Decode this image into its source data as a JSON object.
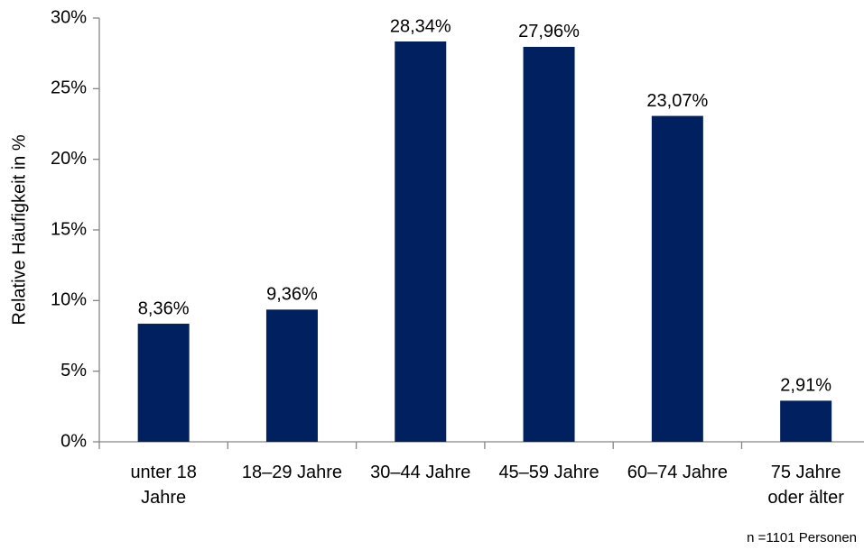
{
  "chart_data": {
    "type": "bar",
    "y_label": "Relative Häufigkeit in %",
    "note": "n =1101 Personen",
    "categories": [
      "unter 18\nJahre",
      "18–29 Jahre",
      "30–44 Jahre",
      "45–59 Jahre",
      "60–74 Jahre",
      "75 Jahre\noder älter"
    ],
    "values": [
      8.36,
      9.36,
      28.34,
      27.96,
      23.07,
      2.91
    ],
    "value_labels": [
      "8,36%",
      "9,36%",
      "28,34%",
      "27,96%",
      "23,07%",
      "2,91%"
    ],
    "color": "#002060",
    "ylim": [
      0,
      30
    ],
    "yticks": [
      {
        "value": 0,
        "label": "0%"
      },
      {
        "value": 5,
        "label": "5%"
      },
      {
        "value": 10,
        "label": "10%"
      },
      {
        "value": 15,
        "label": "15%"
      },
      {
        "value": 20,
        "label": "20%"
      },
      {
        "value": 25,
        "label": "25%"
      },
      {
        "value": 30,
        "label": "30%"
      }
    ],
    "grid": false
  }
}
